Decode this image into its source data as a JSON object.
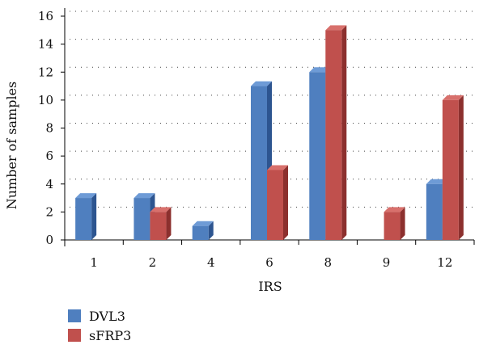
{
  "chart_data": {
    "type": "bar",
    "title": "",
    "xlabel": "IRS",
    "ylabel": "Number of samples",
    "categories": [
      "1",
      "2",
      "4",
      "6",
      "8",
      "9",
      "12"
    ],
    "series": [
      {
        "name": "DVL3",
        "values": [
          3,
          3,
          1,
          11,
          12,
          0,
          4
        ],
        "color": "#4f7fbf",
        "side_color": "#2d5590",
        "top_color": "#6e9bd6"
      },
      {
        "name": "sFRP3",
        "values": [
          0,
          2,
          0,
          5,
          15,
          2,
          10
        ],
        "color": "#c0504d",
        "side_color": "#8c302e",
        "top_color": "#d8706c"
      }
    ],
    "ylim": [
      0,
      16
    ],
    "yticks": [
      "0",
      "2",
      "4",
      "6",
      "8",
      "10",
      "12",
      "14",
      "16"
    ],
    "grid": true,
    "grid_style": "dotted",
    "legend_position": "bottom-left"
  }
}
